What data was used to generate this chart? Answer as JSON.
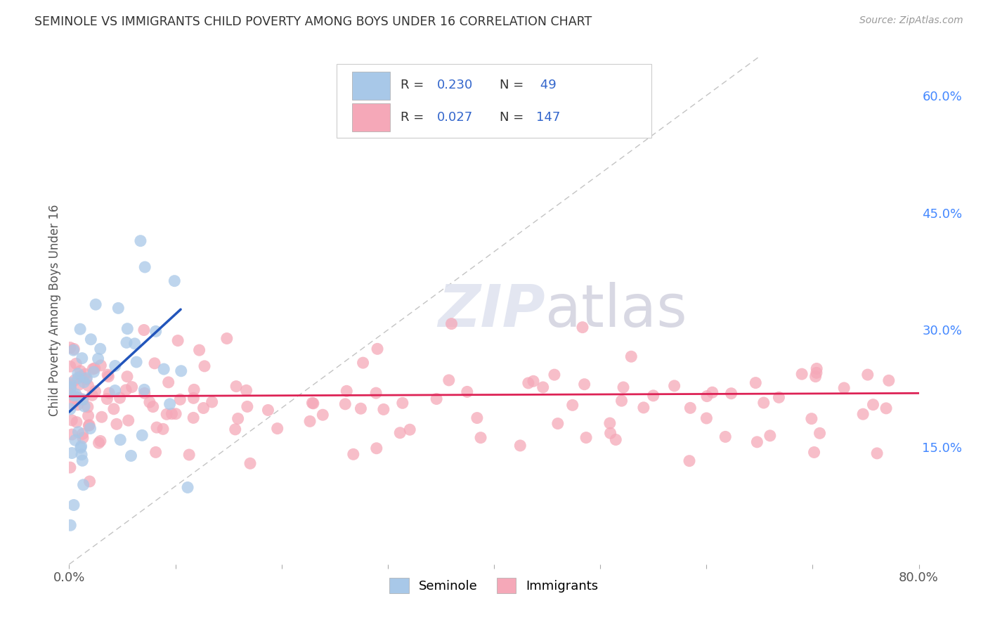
{
  "title": "SEMINOLE VS IMMIGRANTS CHILD POVERTY AMONG BOYS UNDER 16 CORRELATION CHART",
  "source": "Source: ZipAtlas.com",
  "ylabel": "Child Poverty Among Boys Under 16",
  "xlim": [
    0.0,
    0.8
  ],
  "ylim": [
    0.0,
    0.65
  ],
  "xtick_positions": [
    0.0,
    0.1,
    0.2,
    0.3,
    0.4,
    0.5,
    0.6,
    0.7,
    0.8
  ],
  "ytick_right_positions": [
    0.15,
    0.3,
    0.45,
    0.6
  ],
  "ytick_right_labels": [
    "15.0%",
    "30.0%",
    "45.0%",
    "60.0%"
  ],
  "seminole_color": "#a8c8e8",
  "immigrants_color": "#f5a8b8",
  "seminole_line_color": "#2255bb",
  "immigrants_line_color": "#dd2255",
  "diagonal_color": "#aaaaaa",
  "watermark_color": "#e0e4f0",
  "background_color": "#ffffff",
  "grid_color": "#cccccc",
  "legend_label1": "Seminole",
  "legend_label2": "Immigrants",
  "legend_r1": "R = 0.230",
  "legend_n1": "N =  49",
  "legend_r2": "R = 0.027",
  "legend_n2": "N = 147",
  "tick_color": "#4488ff",
  "title_color": "#333333",
  "ylabel_color": "#555555",
  "source_color": "#999999"
}
